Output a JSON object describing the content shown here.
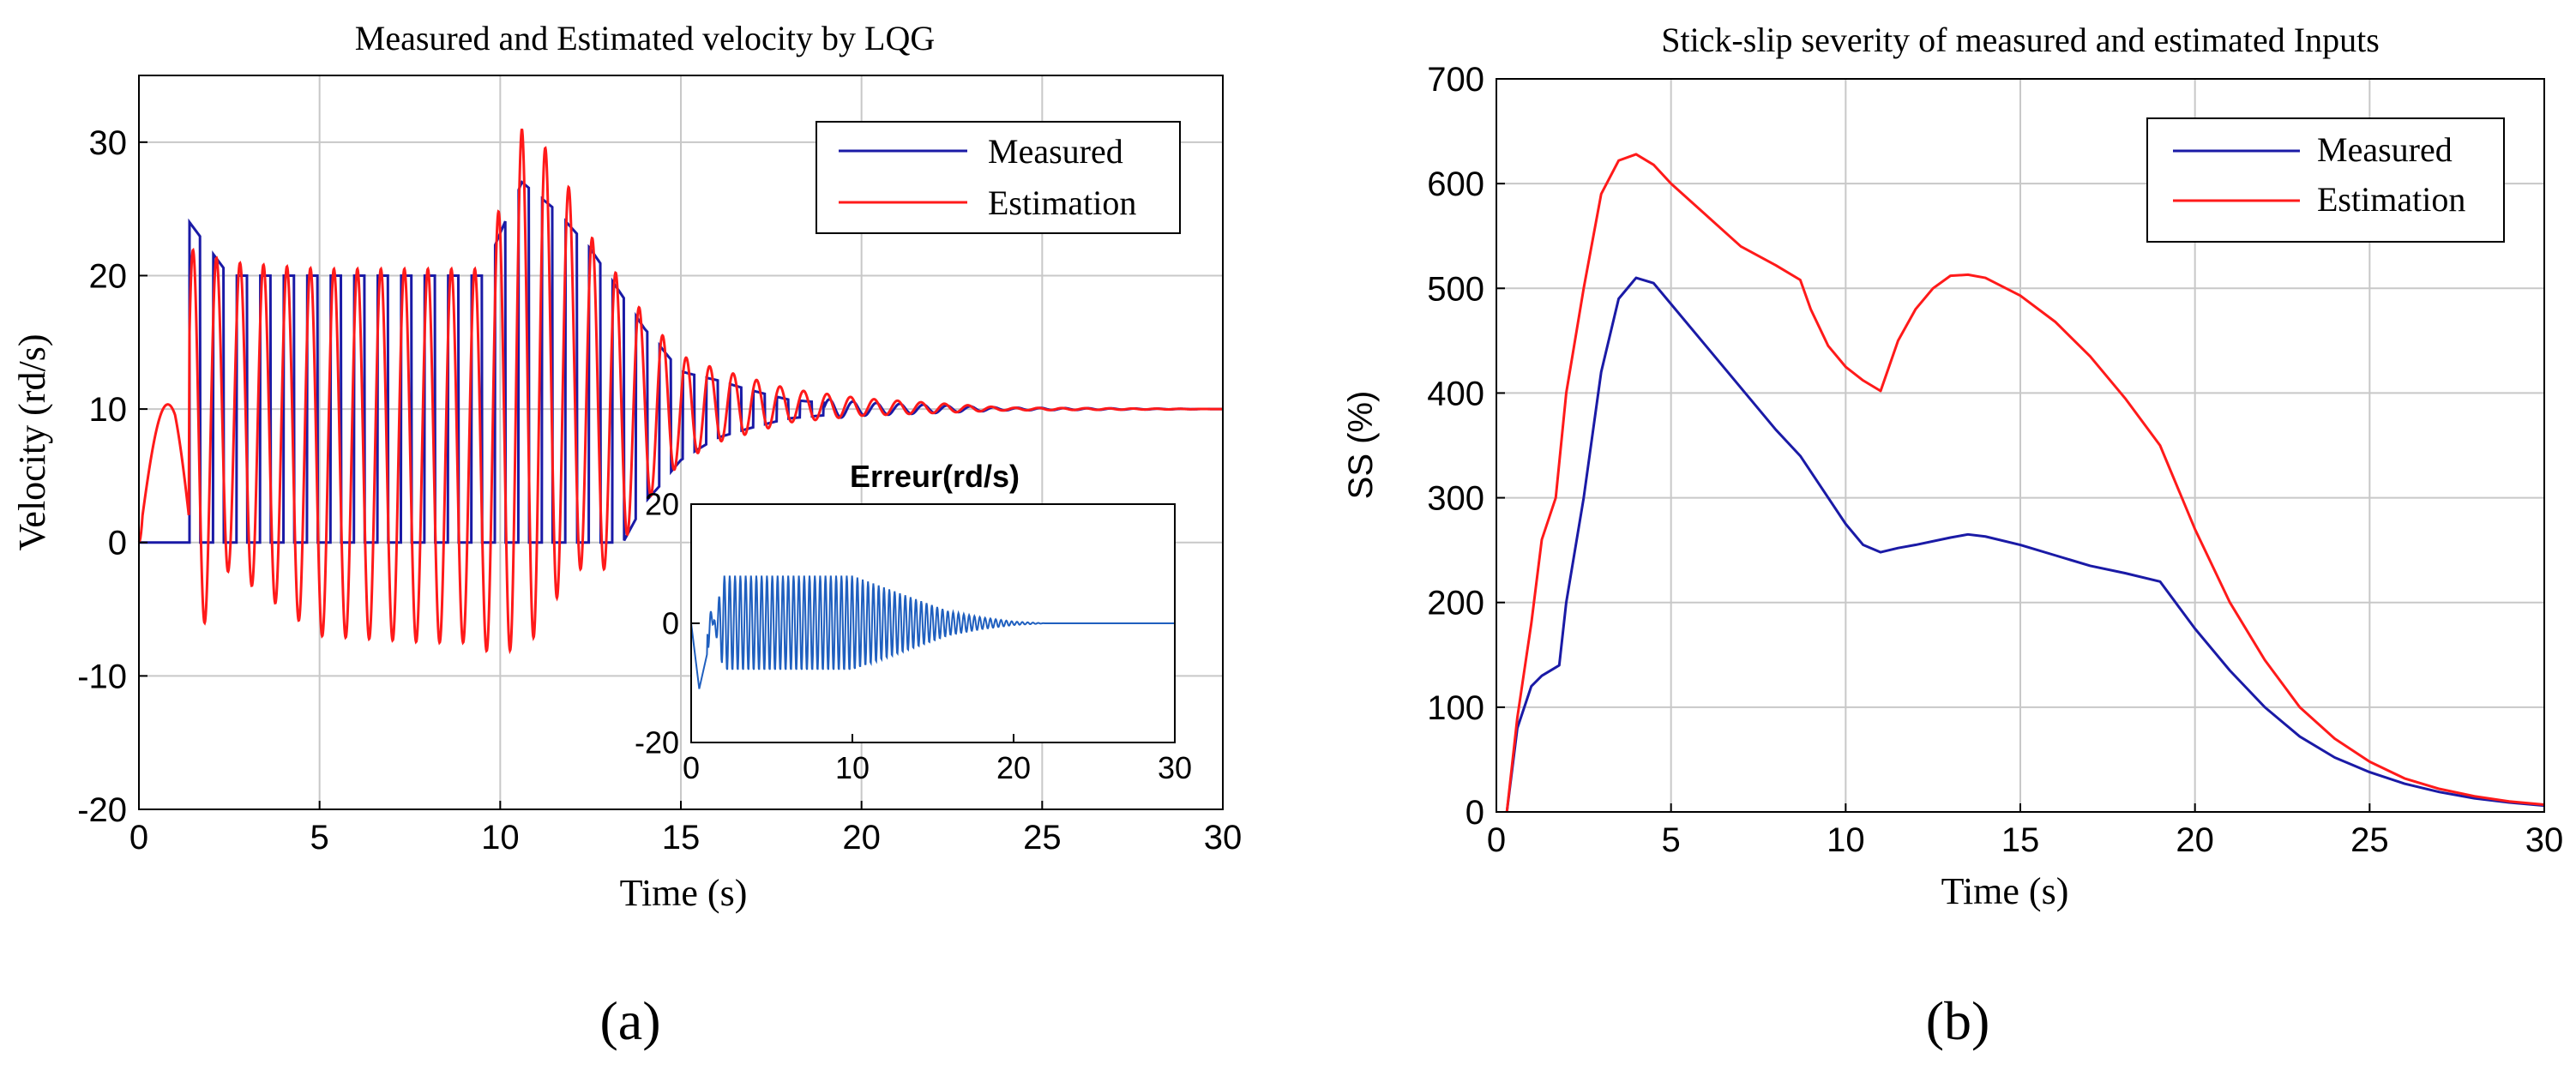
{
  "colors": {
    "measured": "#1a1aa6",
    "estimation": "#ff1a1a",
    "inset": "#1f5fbf",
    "grid": "#c8c8c8",
    "axis": "#000000"
  },
  "chart_data": [
    {
      "id": "a",
      "type": "line",
      "panel_label": "(a)",
      "title": "Measured and Estimated velocity by LQG",
      "xlabel": "Time (s)",
      "ylabel": "Velocity (rd/s)",
      "xlim": [
        0,
        30
      ],
      "ylim": [
        -20,
        35
      ],
      "xticks": [
        "0",
        "5",
        "10",
        "15",
        "20",
        "25",
        "30"
      ],
      "yticks": [
        "-20",
        "-10",
        "0",
        "10",
        "20",
        "30"
      ],
      "grid": true,
      "legend_position": "top-right",
      "legend": [
        "Measured",
        "Estimation"
      ],
      "series": [
        {
          "name": "Measured",
          "color_key": "measured",
          "description": "square-like pulses 0 to peak with period ~0.65 s starting at t=1.4 s; envelope decays after ~12 s and converges to 10 rd/s",
          "start": 1.4,
          "period": 0.65,
          "envelope": [
            [
              1.4,
              24
            ],
            [
              2.5,
              20
            ],
            [
              5,
              20
            ],
            [
              9.5,
              20
            ],
            [
              10.6,
              27
            ],
            [
              11.5,
              25
            ],
            [
              12.5,
              22
            ],
            [
              14,
              16
            ],
            [
              15,
              13
            ],
            [
              16,
              12.5
            ],
            [
              18,
              11
            ],
            [
              20,
              10.5
            ],
            [
              24,
              10.1
            ],
            [
              30,
              10
            ]
          ],
          "final": 10
        },
        {
          "name": "Estimation",
          "color_key": "estimation",
          "description": "oscillation around the measured pulses with overshoot, first hump near t=0.8 s then decaying oscillation converging to 10 rd/s",
          "start": 1.4,
          "period": 0.65,
          "hump": {
            "t": 0.8,
            "value": 11.5
          },
          "max_envelope": [
            [
              1.4,
              22
            ],
            [
              2.5,
              21
            ],
            [
              5,
              20.5
            ],
            [
              9.5,
              20.5
            ],
            [
              10.6,
              31
            ],
            [
              11.5,
              29
            ],
            [
              12.5,
              23
            ],
            [
              14,
              17
            ],
            [
              15,
              14
            ],
            [
              16,
              13
            ],
            [
              18,
              11.5
            ],
            [
              20,
              10.8
            ],
            [
              24,
              10.1
            ],
            [
              30,
              10
            ]
          ],
          "min_envelope": [
            [
              1.4,
              -8.5
            ],
            [
              2.5,
              -2
            ],
            [
              5,
              -7
            ],
            [
              8,
              -7.5
            ],
            [
              9,
              -7.5
            ],
            [
              10,
              -8.5
            ],
            [
              11,
              -7
            ],
            [
              12,
              -2
            ],
            [
              13,
              -2
            ],
            [
              14,
              3
            ],
            [
              15,
              6
            ],
            [
              16,
              7.5
            ],
            [
              18,
              9
            ],
            [
              20,
              9.5
            ],
            [
              24,
              9.9
            ],
            [
              30,
              10
            ]
          ],
          "final": 10
        }
      ],
      "inset": {
        "title": "Erreur(rd/s)",
        "xlim": [
          0,
          30
        ],
        "ylim": [
          -20,
          20
        ],
        "xticks": [
          "0",
          "10",
          "20",
          "30"
        ],
        "yticks": [
          "-20",
          "0",
          "20"
        ],
        "color_key": "inset",
        "error_envelope": [
          [
            0,
            0
          ],
          [
            0.5,
            -11
          ],
          [
            1,
            -5
          ],
          [
            2,
            8
          ],
          [
            5,
            8
          ],
          [
            8,
            8
          ],
          [
            10,
            8
          ],
          [
            11,
            7
          ],
          [
            12,
            6
          ],
          [
            14,
            4
          ],
          [
            16,
            2
          ],
          [
            18,
            1
          ],
          [
            20,
            0.3
          ],
          [
            22,
            0
          ],
          [
            30,
            0
          ]
        ]
      }
    },
    {
      "id": "b",
      "type": "line",
      "panel_label": "(b)",
      "title": "Stick-slip severity of measured and estimated Inputs",
      "xlabel": "Time (s)",
      "ylabel": "SS (%)",
      "xlim": [
        0,
        30
      ],
      "ylim": [
        0,
        700
      ],
      "xticks": [
        "0",
        "5",
        "10",
        "15",
        "20",
        "25",
        "30"
      ],
      "yticks": [
        "0",
        "100",
        "200",
        "300",
        "400",
        "500",
        "600",
        "700"
      ],
      "grid": true,
      "legend_position": "top-right",
      "legend": [
        "Measured",
        "Estimation"
      ],
      "series": [
        {
          "name": "Measured",
          "color_key": "measured",
          "x": [
            0.3,
            0.6,
            1.0,
            1.3,
            1.7,
            1.8,
            2.0,
            2.5,
            3.0,
            3.5,
            4.0,
            4.5,
            5.0,
            6.0,
            7.0,
            8.0,
            8.7,
            9.5,
            10.0,
            10.5,
            11.0,
            11.5,
            12.0,
            13.0,
            13.5,
            14.0,
            15.0,
            16.0,
            17.0,
            18.0,
            19.0,
            20.0,
            21.0,
            22.0,
            23.0,
            24.0,
            25.0,
            26.0,
            27.0,
            28.0,
            29.0,
            30.0
          ],
          "y": [
            0,
            80,
            120,
            130,
            138,
            140,
            200,
            300,
            420,
            490,
            510,
            505,
            485,
            445,
            405,
            365,
            340,
            300,
            275,
            255,
            248,
            252,
            255,
            262,
            265,
            263,
            255,
            245,
            235,
            228,
            220,
            175,
            135,
            100,
            72,
            52,
            38,
            27,
            19,
            13,
            9,
            6
          ]
        },
        {
          "name": "Estimation",
          "color_key": "estimation",
          "x": [
            0.3,
            0.6,
            1.0,
            1.3,
            1.7,
            2.0,
            2.5,
            3.0,
            3.5,
            4.0,
            4.5,
            5.0,
            6.0,
            7.0,
            8.0,
            8.7,
            9.0,
            9.5,
            10.0,
            10.5,
            11.0,
            11.5,
            12.0,
            12.5,
            13.0,
            13.5,
            14.0,
            15.0,
            16.0,
            17.0,
            18.0,
            19.0,
            20.0,
            21.0,
            22.0,
            23.0,
            24.0,
            25.0,
            26.0,
            27.0,
            28.0,
            29.0,
            30.0
          ],
          "y": [
            0,
            90,
            180,
            260,
            300,
            400,
            500,
            590,
            622,
            628,
            618,
            600,
            570,
            540,
            522,
            508,
            480,
            445,
            425,
            412,
            402,
            450,
            480,
            500,
            512,
            513,
            510,
            493,
            468,
            435,
            395,
            350,
            270,
            200,
            145,
            100,
            70,
            48,
            32,
            22,
            15,
            10,
            7
          ]
        }
      ]
    }
  ]
}
